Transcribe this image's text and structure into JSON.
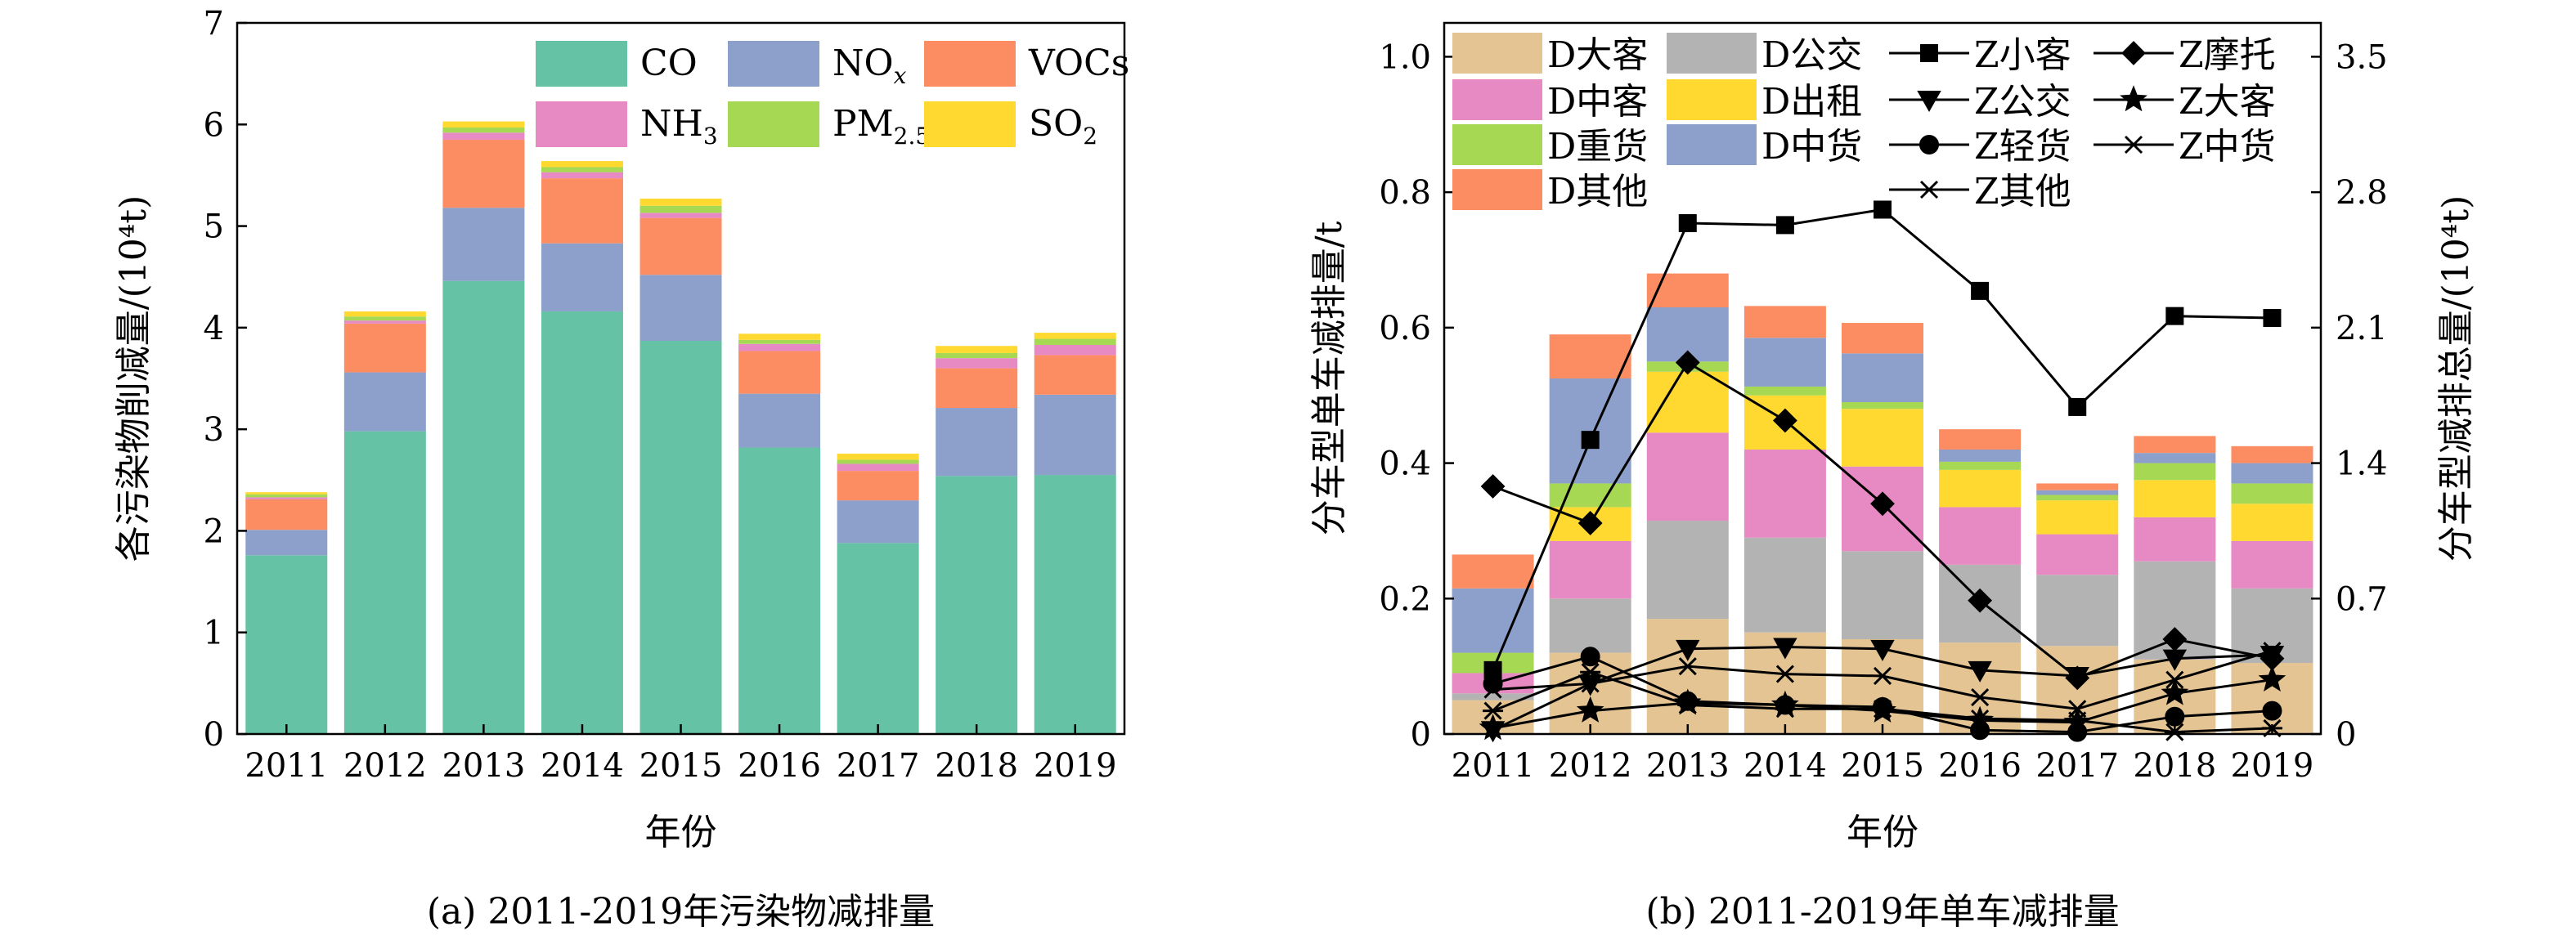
{
  "chart_data": [
    {
      "type": "bar",
      "stacked": true,
      "caption": "(a) 2011-2019年污染物减排量",
      "xlabel": "年份",
      "ylabel": "各污染物削减量/(10⁴t)",
      "ylim": [
        0,
        7
      ],
      "yticks": [
        0,
        1,
        2,
        3,
        4,
        5,
        6,
        7
      ],
      "categories": [
        "2011",
        "2012",
        "2013",
        "2014",
        "2015",
        "2016",
        "2017",
        "2018",
        "2019"
      ],
      "legend": {
        "position": "top-right",
        "columns": 3,
        "order": [
          "CO",
          "NOx",
          "VOCs",
          "NH3",
          "PM2.5",
          "SO2"
        ]
      },
      "series": [
        {
          "name": "CO",
          "label": "CO",
          "color": "#66c2a5",
          "values": [
            1.76,
            2.98,
            4.46,
            4.16,
            3.87,
            2.82,
            1.88,
            2.54,
            2.55
          ]
        },
        {
          "name": "NOx",
          "label": "NO",
          "sub": "x",
          "sub_italic": true,
          "color": "#8da0cb",
          "values": [
            0.25,
            0.58,
            0.72,
            0.67,
            0.65,
            0.53,
            0.42,
            0.67,
            0.79
          ]
        },
        {
          "name": "VOCs",
          "label": "VOCs",
          "color": "#fc8d62",
          "values": [
            0.3,
            0.48,
            0.67,
            0.64,
            0.56,
            0.42,
            0.29,
            0.39,
            0.39
          ]
        },
        {
          "name": "NH3",
          "label": "NH",
          "sub": "3",
          "color": "#e78ac3",
          "values": [
            0.02,
            0.03,
            0.07,
            0.06,
            0.05,
            0.07,
            0.07,
            0.1,
            0.1
          ]
        },
        {
          "name": "PM2.5",
          "label": "PM",
          "sub": "2.5",
          "color": "#a6d854",
          "values": [
            0.03,
            0.04,
            0.05,
            0.05,
            0.07,
            0.04,
            0.04,
            0.05,
            0.06
          ]
        },
        {
          "name": "SO2",
          "label": "SO",
          "sub": "2",
          "color": "#ffd92f",
          "values": [
            0.02,
            0.05,
            0.06,
            0.06,
            0.07,
            0.06,
            0.06,
            0.07,
            0.06
          ]
        }
      ]
    },
    {
      "type": "bar+line",
      "stacked": true,
      "caption": "(b) 2011-2019年单车减排量",
      "xlabel": "年份",
      "ylabel": "分车型单车减排量/t",
      "y2label": "分车型减排总量/(10⁴t)",
      "ylim": [
        0,
        1.05
      ],
      "yticks": [
        "0",
        "0.2",
        "0.4",
        "0.6",
        "0.8",
        "1.0"
      ],
      "y2lim": [
        0,
        3.675
      ],
      "y2ticks": [
        "0",
        "0.7",
        "1.4",
        "2.1",
        "2.8",
        "3.5"
      ],
      "categories": [
        "2011",
        "2012",
        "2013",
        "2014",
        "2015",
        "2016",
        "2017",
        "2018",
        "2019"
      ],
      "bar_series": [
        {
          "name": "D大客",
          "color": "#e5c494",
          "values": [
            0.05,
            0.12,
            0.17,
            0.15,
            0.14,
            0.135,
            0.13,
            0.11,
            0.105
          ]
        },
        {
          "name": "D公交",
          "color": "#b3b3b3",
          "values": [
            0.01,
            0.08,
            0.145,
            0.14,
            0.13,
            0.115,
            0.105,
            0.145,
            0.11
          ]
        },
        {
          "name": "D中客",
          "color": "#e78ac3",
          "values": [
            0.03,
            0.085,
            0.13,
            0.13,
            0.125,
            0.085,
            0.06,
            0.065,
            0.07
          ]
        },
        {
          "name": "D出租",
          "color": "#ffd92f",
          "values": [
            0.0,
            0.05,
            0.09,
            0.08,
            0.085,
            0.055,
            0.05,
            0.055,
            0.055
          ]
        },
        {
          "name": "D重货",
          "color": "#a6d854",
          "values": [
            0.03,
            0.035,
            0.015,
            0.013,
            0.01,
            0.012,
            0.008,
            0.025,
            0.03
          ]
        },
        {
          "name": "D中货",
          "color": "#8da0cb",
          "values": [
            0.095,
            0.155,
            0.08,
            0.072,
            0.072,
            0.018,
            0.007,
            0.015,
            0.03
          ]
        },
        {
          "name": "D其他",
          "color": "#fc8d62",
          "values": [
            0.05,
            0.065,
            0.05,
            0.047,
            0.045,
            0.03,
            0.01,
            0.025,
            0.025
          ]
        }
      ],
      "line_series": [
        {
          "name": "Z小客",
          "marker": "square",
          "values": [
            0.33,
            1.52,
            2.64,
            2.63,
            2.71,
            2.29,
            1.69,
            2.16,
            2.15
          ]
        },
        {
          "name": "Z摩托",
          "marker": "diamond",
          "values": [
            1.28,
            1.09,
            1.92,
            1.62,
            1.19,
            0.69,
            0.29,
            0.49,
            0.39
          ]
        },
        {
          "name": "Z公交",
          "marker": "triangle-down",
          "values": [
            0.02,
            0.26,
            0.44,
            0.45,
            0.44,
            0.33,
            0.3,
            0.39,
            0.41
          ]
        },
        {
          "name": "Z大客",
          "marker": "star",
          "values": [
            0.03,
            0.12,
            0.16,
            0.15,
            0.12,
            0.07,
            0.06,
            0.21,
            0.28
          ]
        },
        {
          "name": "Z轻货",
          "marker": "circle",
          "values": [
            0.26,
            0.4,
            0.17,
            0.15,
            0.14,
            0.02,
            0.01,
            0.09,
            0.12
          ]
        },
        {
          "name": "Z中货",
          "marker": "asterisk",
          "values": [
            0.12,
            0.32,
            0.15,
            0.13,
            0.13,
            0.08,
            0.07,
            0.01,
            0.03
          ]
        },
        {
          "name": "Z其他",
          "marker": "x",
          "values": [
            0.23,
            0.26,
            0.35,
            0.31,
            0.3,
            0.19,
            0.13,
            0.28,
            0.43
          ]
        }
      ],
      "legend": {
        "position": "top",
        "bar_rows": [
          [
            "D大客",
            "D公交"
          ],
          [
            "D中客",
            "D出租"
          ],
          [
            "D重货",
            "D中货"
          ],
          [
            "D其他"
          ]
        ],
        "line_rows": [
          [
            "Z小客",
            "Z摩托"
          ],
          [
            "Z公交",
            "Z大客"
          ],
          [
            "Z轻货",
            "Z中货"
          ],
          [
            "Z其他"
          ]
        ]
      }
    }
  ]
}
